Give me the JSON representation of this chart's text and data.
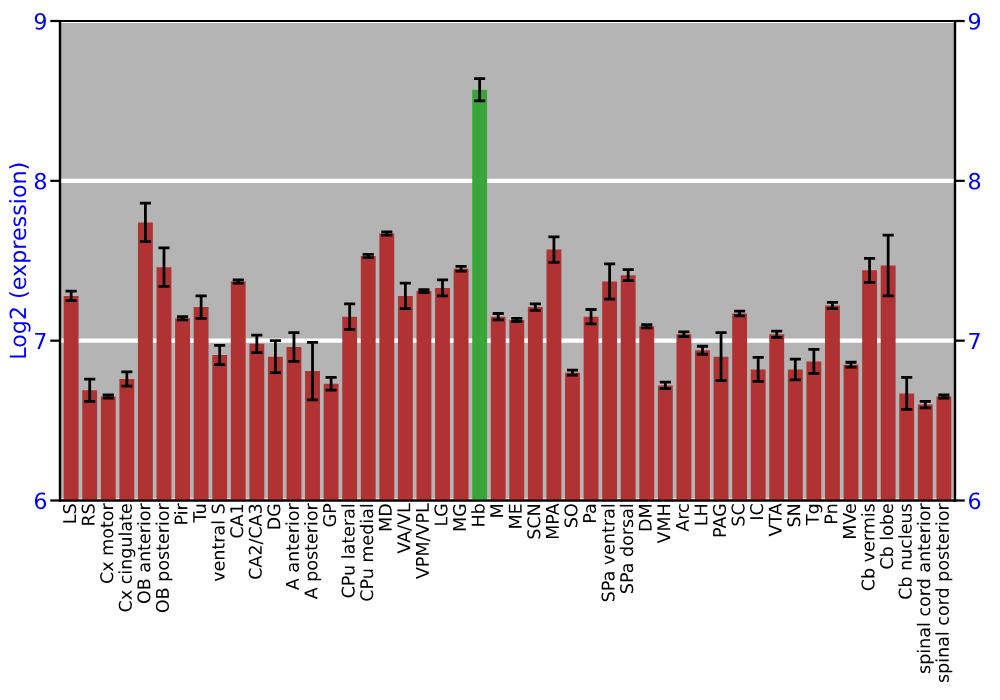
{
  "chart_data": {
    "type": "bar",
    "ylabel": "Log2 (expression)",
    "categories": [
      "LS",
      "RS",
      "Cx motor",
      "Cx cingulate",
      "OB anterior",
      "OB posterior",
      "Pir",
      "Tu",
      "ventral S",
      "CA1",
      "CA2/CA3",
      "DG",
      "A anterior",
      "A posterior",
      "GP",
      "CPu lateral",
      "CPu medial",
      "MD",
      "VA/VL",
      "VPM/VPL",
      "LG",
      "MG",
      "Hb",
      "M",
      "ME",
      "SCN",
      "MPA",
      "SO",
      "Pa",
      "SPa ventral",
      "SPa dorsal",
      "DM",
      "VMH",
      "Arc",
      "LH",
      "PAG",
      "SC",
      "IC",
      "VTA",
      "SN",
      "Tg",
      "Pn",
      "MVe",
      "Cb vermis",
      "Cb lobe",
      "Cb nucleus",
      "spinal cord anterior",
      "spinal cord posterior"
    ],
    "values": [
      7.28,
      6.69,
      6.65,
      6.76,
      7.74,
      7.46,
      7.14,
      7.21,
      6.91,
      7.37,
      6.98,
      6.9,
      6.96,
      6.81,
      6.73,
      7.15,
      7.53,
      7.67,
      7.28,
      7.31,
      7.33,
      7.45,
      8.57,
      7.15,
      7.13,
      7.21,
      7.57,
      6.8,
      7.15,
      7.37,
      7.41,
      7.09,
      6.72,
      7.04,
      6.94,
      6.9,
      7.17,
      6.82,
      7.04,
      6.82,
      6.87,
      7.22,
      6.85,
      7.44,
      7.47,
      6.67,
      6.6,
      6.65
    ],
    "errors": [
      0.03,
      0.07,
      0.01,
      0.045,
      0.12,
      0.12,
      0.01,
      0.07,
      0.06,
      0.01,
      0.055,
      0.1,
      0.09,
      0.18,
      0.04,
      0.08,
      0.01,
      0.01,
      0.08,
      0.01,
      0.05,
      0.015,
      0.07,
      0.02,
      0.01,
      0.02,
      0.08,
      0.015,
      0.045,
      0.11,
      0.035,
      0.01,
      0.02,
      0.015,
      0.025,
      0.15,
      0.015,
      0.075,
      0.02,
      0.065,
      0.075,
      0.02,
      0.015,
      0.075,
      0.19,
      0.1,
      0.02,
      0.01
    ],
    "colors": [
      "#b03232",
      "#b03232",
      "#b03232",
      "#b03232",
      "#b03232",
      "#b03232",
      "#b03232",
      "#b03232",
      "#b03232",
      "#b03232",
      "#b03232",
      "#b03232",
      "#b03232",
      "#b03232",
      "#b03232",
      "#b03232",
      "#b03232",
      "#b03232",
      "#b03232",
      "#b03232",
      "#b03232",
      "#b03232",
      "#3aa63a",
      "#b03232",
      "#b03232",
      "#b03232",
      "#b03232",
      "#b03232",
      "#b03232",
      "#b03232",
      "#b03232",
      "#b03232",
      "#b03232",
      "#b03232",
      "#b03232",
      "#b03232",
      "#b03232",
      "#b03232",
      "#b03232",
      "#b03232",
      "#b03232",
      "#b03232",
      "#b03232",
      "#b03232",
      "#b03232",
      "#b03232",
      "#b03232",
      "#b03232"
    ],
    "ylim": [
      6,
      9
    ],
    "yticks": [
      6,
      7,
      8,
      9
    ],
    "y2lim": [
      6,
      9
    ],
    "y2ticks": [
      6,
      7,
      8,
      9
    ],
    "grid": "y"
  }
}
